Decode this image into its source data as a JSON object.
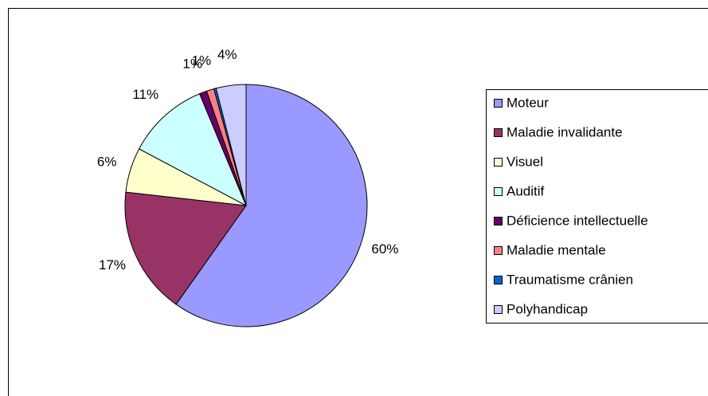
{
  "chart_data": {
    "type": "pie",
    "categories": [
      "Moteur",
      "Maladie invalidante",
      "Visuel",
      "Auditif",
      "Déficience intellectuelle",
      "Maladie mentale",
      "Traumatisme crânien",
      "Polyhandicap"
    ],
    "values": [
      60,
      17,
      6,
      11,
      1,
      1,
      0.3,
      4
    ],
    "value_labels": [
      "60%",
      "17%",
      "6%",
      "11%",
      "1%",
      "1%",
      null,
      "4%"
    ],
    "colors": [
      "#9999FF",
      "#993366",
      "#FFFFCC",
      "#CCFFFF",
      "#660066",
      "#FF8080",
      "#0066CC",
      "#CCCCFF"
    ],
    "legend": "right"
  }
}
